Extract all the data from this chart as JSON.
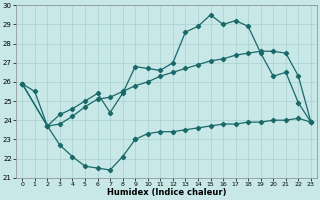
{
  "xlabel": "Humidex (Indice chaleur)",
  "background_color": "#c8e8e8",
  "grid_color": "#a8d0d0",
  "line_color": "#1a6868",
  "xlim_min": -0.5,
  "xlim_max": 23.5,
  "ylim_min": 21,
  "ylim_max": 30,
  "xticks": [
    0,
    1,
    2,
    3,
    4,
    5,
    6,
    7,
    8,
    9,
    10,
    11,
    12,
    13,
    14,
    15,
    16,
    17,
    18,
    19,
    20,
    21,
    22,
    23
  ],
  "yticks": [
    21,
    22,
    23,
    24,
    25,
    26,
    27,
    28,
    29,
    30
  ],
  "line1_x": [
    0,
    2,
    3,
    4,
    5,
    6,
    7,
    8,
    9,
    10,
    11,
    12,
    13,
    14,
    15,
    16,
    17,
    18,
    19,
    20,
    21,
    22,
    23
  ],
  "line1_y": [
    25.9,
    23.7,
    23.8,
    24.2,
    24.7,
    25.1,
    25.2,
    25.5,
    25.8,
    26.0,
    26.3,
    26.5,
    26.7,
    26.9,
    27.1,
    27.2,
    27.4,
    27.5,
    27.6,
    27.6,
    27.5,
    26.3,
    23.9
  ],
  "line2_x": [
    0,
    1,
    2,
    3,
    4,
    5,
    6,
    7,
    8,
    9
  ],
  "line2_y": [
    25.9,
    25.5,
    23.7,
    22.7,
    22.1,
    21.6,
    21.5,
    21.4,
    22.1,
    23.0
  ],
  "line3_x": [
    0,
    2,
    3,
    4,
    5,
    6,
    7,
    8,
    9,
    10,
    11,
    12,
    13,
    14,
    15,
    16,
    17,
    18,
    19,
    20,
    21,
    22,
    23
  ],
  "line3_y": [
    25.9,
    23.7,
    24.3,
    24.6,
    25.0,
    25.4,
    24.4,
    25.4,
    26.8,
    26.7,
    26.6,
    27.0,
    28.6,
    28.9,
    29.5,
    29.0,
    29.2,
    28.9,
    27.5,
    26.3,
    26.5,
    24.9,
    23.9
  ],
  "line4_x": [
    9,
    10,
    11,
    12,
    13,
    14,
    15,
    16,
    17,
    18,
    19,
    20,
    21,
    22,
    23
  ],
  "line4_y": [
    23.0,
    23.3,
    23.4,
    23.4,
    23.5,
    23.6,
    23.7,
    23.8,
    23.8,
    23.9,
    23.9,
    24.0,
    24.0,
    24.1,
    23.9
  ]
}
